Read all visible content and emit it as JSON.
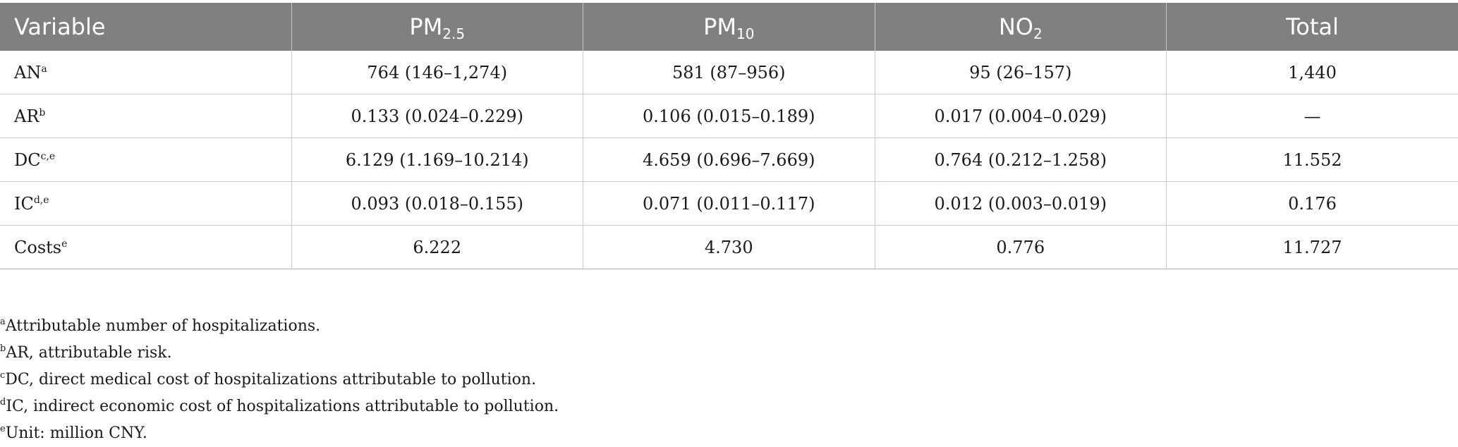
{
  "table": {
    "headers": [
      {
        "main": "Variable",
        "sub": ""
      },
      {
        "main": "PM",
        "sub": "2.5"
      },
      {
        "main": "PM",
        "sub": "10"
      },
      {
        "main": "NO",
        "sub": "2"
      },
      {
        "main": "Total",
        "sub": ""
      }
    ],
    "rows": [
      {
        "label": "AN",
        "sup": "a",
        "cells": [
          "764 (146–1,274)",
          "581 (87–956)",
          "95 (26–157)",
          "1,440"
        ]
      },
      {
        "label": "AR",
        "sup": "b",
        "cells": [
          "0.133 (0.024–0.229)",
          "0.106 (0.015–0.189)",
          "0.017 (0.004–0.029)",
          "—"
        ]
      },
      {
        "label": "DC",
        "sup": "c,e",
        "cells": [
          "6.129 (1.169–10.214)",
          "4.659 (0.696–7.669)",
          "0.764 (0.212–1.258)",
          "11.552"
        ]
      },
      {
        "label": "IC",
        "sup": "d,e",
        "cells": [
          "0.093 (0.018–0.155)",
          "0.071 (0.011–0.117)",
          "0.012 (0.003–0.019)",
          "0.176"
        ]
      },
      {
        "label": "Costs",
        "sup": "e",
        "cells": [
          "6.222",
          "4.730",
          "0.776",
          "11.727"
        ]
      }
    ]
  },
  "footnotes": [
    {
      "mark": "a",
      "text": "Attributable number of hospitalizations."
    },
    {
      "mark": "b",
      "text": "AR, attributable risk."
    },
    {
      "mark": "c",
      "text": "DC, direct medical cost of hospitalizations attributable to pollution."
    },
    {
      "mark": "d",
      "text": "IC, indirect economic cost of hospitalizations attributable to pollution."
    },
    {
      "mark": "e",
      "text": "Unit: million CNY."
    }
  ]
}
